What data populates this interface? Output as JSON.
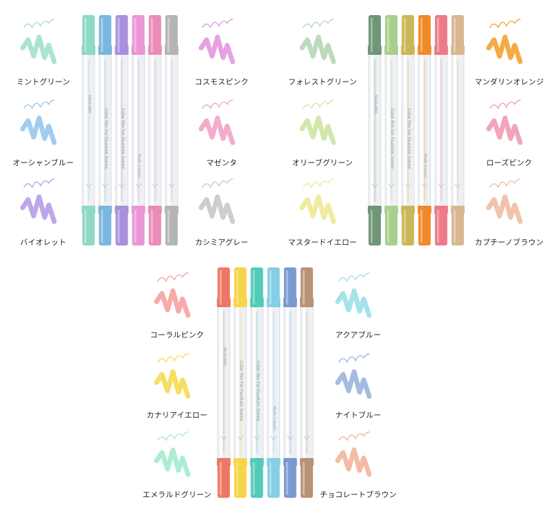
{
  "sets": [
    {
      "id": "set-1",
      "pens": [
        {
          "color": "#8ed8c4"
        },
        {
          "color": "#7ab6de"
        },
        {
          "color": "#a98fdc"
        },
        {
          "color": "#e995d6"
        },
        {
          "color": "#ea8cb7"
        },
        {
          "color": "#b5b5b5"
        }
      ],
      "left_labels": [
        {
          "name": "ミントグリーン",
          "color": "#a6e2d2"
        },
        {
          "name": "オーシャンブルー",
          "color": "#9cc9ef"
        },
        {
          "name": "バイオレット",
          "color": "#b8a2ea"
        }
      ],
      "right_labels": [
        {
          "name": "コスモスピンク",
          "color": "#e69ce2"
        },
        {
          "name": "マゼンタ",
          "color": "#f2a8c8"
        },
        {
          "name": "カシミアグレー",
          "color": "#cacaca"
        }
      ]
    },
    {
      "id": "set-2",
      "pens": [
        {
          "color": "#6f9679"
        },
        {
          "color": "#a9cf8c"
        },
        {
          "color": "#c9b757"
        },
        {
          "color": "#f08a28"
        },
        {
          "color": "#ec7a88"
        },
        {
          "color": "#d8b690"
        }
      ],
      "left_labels": [
        {
          "name": "フォレストグリーン",
          "color": "#b9d9b8"
        },
        {
          "name": "オリーブグリーン",
          "color": "#cfe6a8"
        },
        {
          "name": "マスタードイエロー",
          "color": "#efea9a"
        }
      ],
      "right_labels": [
        {
          "name": "マンダリンオレンジ",
          "color": "#f4a63a"
        },
        {
          "name": "ローズピンク",
          "color": "#f1a0b6"
        },
        {
          "name": "カプチーノブラウン",
          "color": "#f0c0a4"
        }
      ]
    },
    {
      "id": "set-3",
      "pens": [
        {
          "color": "#ee7868"
        },
        {
          "color": "#f7d548"
        },
        {
          "color": "#52cbb7"
        },
        {
          "color": "#84cee6"
        },
        {
          "color": "#7b98cf"
        },
        {
          "color": "#b99276"
        }
      ],
      "left_labels": [
        {
          "name": "コーラルピンク",
          "color": "#f4a8a4"
        },
        {
          "name": "カナリアイエロー",
          "color": "#f6dc58"
        },
        {
          "name": "エメラルドグリーン",
          "color": "#a8ecd2"
        }
      ],
      "right_labels": [
        {
          "name": "アクアブルー",
          "color": "#9fe2ea"
        },
        {
          "name": "ナイトブルー",
          "color": "#9fb8de"
        },
        {
          "name": "チョコレートブラウン",
          "color": "#f3b7a0"
        }
      ]
    }
  ],
  "pen_body_text": {
    "brand": "MILDLINER",
    "line1": "Color Pen For Fountain Sonne",
    "line2": "Made in Japan"
  }
}
